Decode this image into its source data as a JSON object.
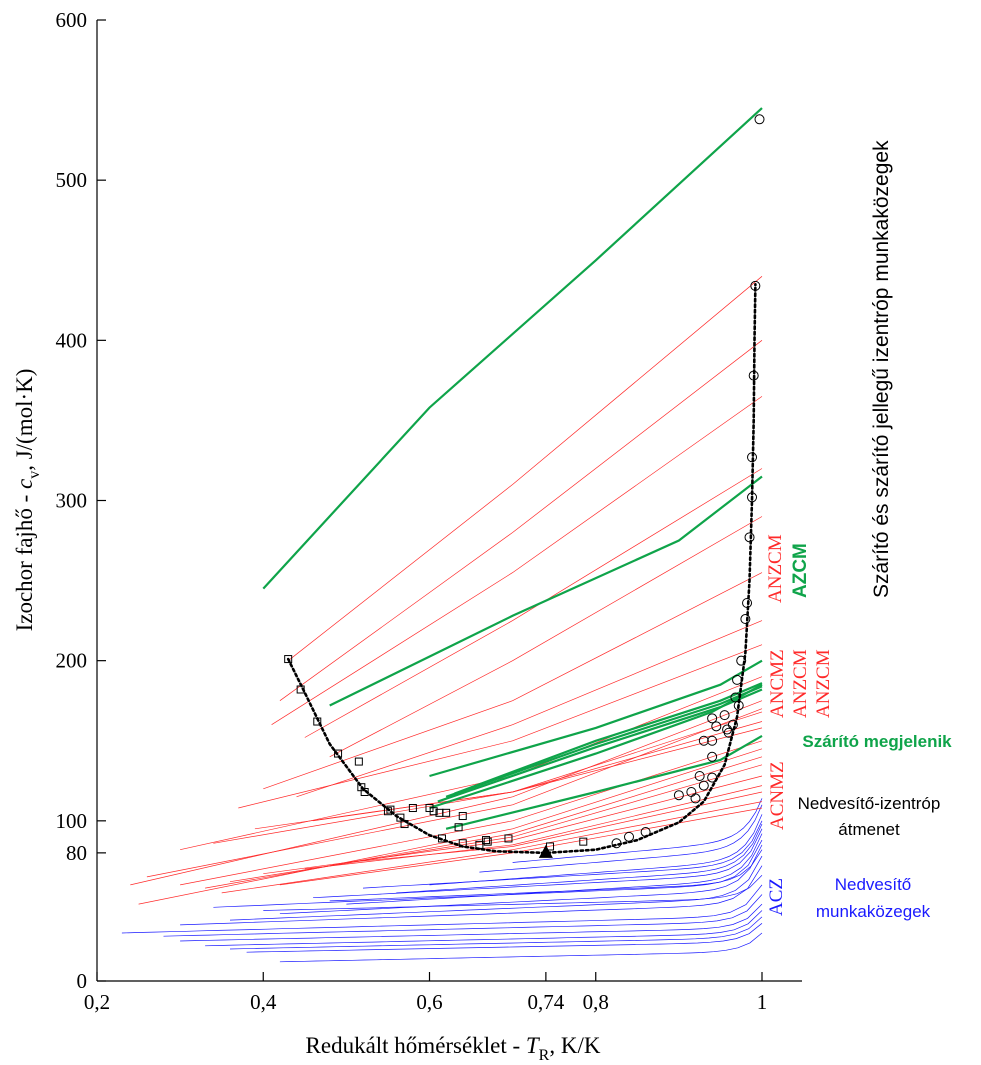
{
  "colors": {
    "red": "#ff2a2a",
    "green": "#0fa44a",
    "blue": "#1a1aff",
    "black": "#000000"
  },
  "chart_data": {
    "type": "line",
    "title": "",
    "xlabel": "Redukált hőmérséklet - T_R, K/K",
    "xlabel_parts": {
      "main": "Redukált hőmérséklet - ",
      "symbol": "T",
      "sub": "R",
      "unit": ", K/K"
    },
    "ylabel": "Izochor fajhő - c_v, J/(mol·K)",
    "ylabel_parts": {
      "main": "Izochor fajhő - ",
      "symbol": "c",
      "sub": "v",
      "unit": ", J/(mol·K)"
    },
    "xlim": [
      0.2,
      1.025
    ],
    "ylim": [
      0,
      600
    ],
    "xticks": [
      {
        "value": 0.2,
        "label": "0,2"
      },
      {
        "value": 0.4,
        "label": "0,4"
      },
      {
        "value": 0.6,
        "label": "0,6"
      },
      {
        "value": 0.74,
        "label": "0,74"
      },
      {
        "value": 0.8,
        "label": "0,8"
      },
      {
        "value": 1.0,
        "label": "1"
      }
    ],
    "yticks": [
      {
        "value": 0,
        "label": "0"
      },
      {
        "value": 80,
        "label": "80"
      },
      {
        "value": 100,
        "label": "100"
      },
      {
        "value": 200,
        "label": "200"
      },
      {
        "value": 300,
        "label": "300"
      },
      {
        "value": 400,
        "label": "400"
      },
      {
        "value": 500,
        "label": "500"
      },
      {
        "value": 600,
        "label": "600"
      }
    ],
    "grid": false,
    "series": [
      {
        "group": "green",
        "points": [
          [
            0.4,
            245
          ],
          [
            0.6,
            358
          ],
          [
            0.8,
            450
          ],
          [
            1.0,
            545
          ]
        ]
      },
      {
        "group": "green",
        "points": [
          [
            0.48,
            172
          ],
          [
            0.7,
            228
          ],
          [
            0.9,
            275
          ],
          [
            1.0,
            315
          ]
        ]
      },
      {
        "group": "green",
        "points": [
          [
            0.6,
            108
          ],
          [
            0.8,
            142
          ],
          [
            0.94,
            168
          ],
          [
            1.0,
            185
          ]
        ]
      },
      {
        "group": "green",
        "points": [
          [
            0.61,
            112
          ],
          [
            0.8,
            146
          ],
          [
            0.95,
            171
          ],
          [
            1.0,
            182
          ]
        ]
      },
      {
        "group": "green",
        "points": [
          [
            0.62,
            115
          ],
          [
            0.8,
            148
          ],
          [
            0.95,
            173
          ],
          [
            1.0,
            184
          ]
        ]
      },
      {
        "group": "green",
        "points": [
          [
            0.63,
            117
          ],
          [
            0.8,
            150
          ],
          [
            0.95,
            175
          ],
          [
            1.0,
            186
          ]
        ]
      },
      {
        "group": "green",
        "points": [
          [
            0.6,
            128
          ],
          [
            0.8,
            158
          ],
          [
            0.95,
            185
          ],
          [
            1.0,
            200
          ]
        ]
      },
      {
        "group": "green",
        "points": [
          [
            0.62,
            95
          ],
          [
            0.8,
            118
          ],
          [
            0.95,
            138
          ],
          [
            1.0,
            153
          ]
        ]
      },
      {
        "group": "red",
        "points": [
          [
            0.43,
            200
          ],
          [
            0.7,
            310
          ],
          [
            1.0,
            440
          ]
        ]
      },
      {
        "group": "red",
        "points": [
          [
            0.42,
            175
          ],
          [
            0.7,
            280
          ],
          [
            1.0,
            400
          ]
        ]
      },
      {
        "group": "red",
        "points": [
          [
            0.41,
            160
          ],
          [
            0.7,
            255
          ],
          [
            1.0,
            365
          ]
        ]
      },
      {
        "group": "red",
        "points": [
          [
            0.45,
            152
          ],
          [
            0.7,
            225
          ],
          [
            1.0,
            320
          ]
        ]
      },
      {
        "group": "red",
        "points": [
          [
            0.48,
            140
          ],
          [
            0.7,
            200
          ],
          [
            1.0,
            290
          ]
        ]
      },
      {
        "group": "red",
        "points": [
          [
            0.4,
            120
          ],
          [
            0.7,
            175
          ],
          [
            1.0,
            255
          ]
        ]
      },
      {
        "group": "red",
        "points": [
          [
            0.44,
            115
          ],
          [
            0.7,
            160
          ],
          [
            1.0,
            225
          ]
        ]
      },
      {
        "group": "red",
        "points": [
          [
            0.37,
            108
          ],
          [
            0.7,
            150
          ],
          [
            1.0,
            210
          ]
        ]
      },
      {
        "group": "red",
        "points": [
          [
            0.3,
            82
          ],
          [
            0.7,
            128
          ],
          [
            1.0,
            190
          ]
        ]
      },
      {
        "group": "red",
        "points": [
          [
            0.24,
            60
          ],
          [
            0.7,
            115
          ],
          [
            1.0,
            175
          ]
        ]
      },
      {
        "group": "red",
        "points": [
          [
            0.26,
            65
          ],
          [
            0.7,
            110
          ],
          [
            1.0,
            170
          ]
        ]
      },
      {
        "group": "red",
        "points": [
          [
            0.34,
            86
          ],
          [
            0.7,
            118
          ],
          [
            1.0,
            168
          ]
        ]
      },
      {
        "group": "red",
        "points": [
          [
            0.39,
            95
          ],
          [
            0.7,
            118
          ],
          [
            1.0,
            162
          ]
        ]
      },
      {
        "group": "red",
        "points": [
          [
            0.46,
            100
          ],
          [
            0.7,
            118
          ],
          [
            1.0,
            158
          ]
        ]
      },
      {
        "group": "red",
        "points": [
          [
            0.3,
            60
          ],
          [
            0.7,
            100
          ],
          [
            1.0,
            150
          ]
        ]
      },
      {
        "group": "red",
        "points": [
          [
            0.25,
            48
          ],
          [
            0.7,
            95
          ],
          [
            1.0,
            145
          ]
        ]
      },
      {
        "group": "red",
        "points": [
          [
            0.33,
            58
          ],
          [
            0.7,
            92
          ],
          [
            1.0,
            140
          ]
        ]
      },
      {
        "group": "red",
        "points": [
          [
            0.36,
            62
          ],
          [
            0.7,
            90
          ],
          [
            1.0,
            135
          ]
        ]
      },
      {
        "group": "red",
        "points": [
          [
            0.4,
            67
          ],
          [
            0.7,
            88
          ],
          [
            1.0,
            128
          ]
        ]
      },
      {
        "group": "red",
        "points": [
          [
            0.45,
            70
          ],
          [
            0.7,
            85
          ],
          [
            1.0,
            122
          ]
        ]
      },
      {
        "group": "red",
        "points": [
          [
            0.5,
            74
          ],
          [
            0.7,
            84
          ],
          [
            1.0,
            118
          ]
        ]
      },
      {
        "group": "red",
        "points": [
          [
            0.35,
            55
          ],
          [
            0.7,
            82
          ],
          [
            1.0,
            112
          ]
        ]
      },
      {
        "group": "red",
        "points": [
          [
            0.42,
            60
          ],
          [
            0.7,
            80
          ],
          [
            1.0,
            108
          ]
        ]
      },
      {
        "group": "blue",
        "start": [
          0.23,
          30
        ],
        "end": 60
      },
      {
        "group": "blue",
        "start": [
          0.28,
          28
        ],
        "end": 54
      },
      {
        "group": "blue",
        "start": [
          0.3,
          25
        ],
        "end": 48
      },
      {
        "group": "blue",
        "start": [
          0.33,
          22
        ],
        "end": 44
      },
      {
        "group": "blue",
        "start": [
          0.36,
          20
        ],
        "end": 40
      },
      {
        "group": "blue",
        "start": [
          0.38,
          18
        ],
        "end": 36
      },
      {
        "group": "blue",
        "start": [
          0.42,
          12
        ],
        "end": 30
      },
      {
        "group": "blue",
        "start": [
          0.3,
          35
        ],
        "end": 72
      },
      {
        "group": "blue",
        "start": [
          0.36,
          38
        ],
        "end": 78
      },
      {
        "group": "blue",
        "start": [
          0.42,
          42
        ],
        "end": 85
      },
      {
        "group": "blue",
        "start": [
          0.5,
          48
        ],
        "end": 92
      },
      {
        "group": "blue",
        "start": [
          0.56,
          55
        ],
        "end": 98
      },
      {
        "group": "blue",
        "start": [
          0.6,
          60
        ],
        "end": 104
      },
      {
        "group": "blue",
        "start": [
          0.66,
          68
        ],
        "end": 110
      },
      {
        "group": "blue",
        "start": [
          0.7,
          74
        ],
        "end": 114
      },
      {
        "group": "blue",
        "start": [
          0.34,
          46
        ],
        "end": 88
      },
      {
        "group": "blue",
        "start": [
          0.46,
          52
        ],
        "end": 95
      },
      {
        "group": "blue",
        "start": [
          0.52,
          58
        ],
        "end": 100
      },
      {
        "group": "blue",
        "start": [
          0.4,
          44
        ],
        "end": 66
      },
      {
        "group": "blue",
        "start": [
          0.48,
          50
        ],
        "end": 82
      }
    ],
    "square_markers": [
      [
        0.43,
        201
      ],
      [
        0.445,
        182
      ],
      [
        0.465,
        162
      ],
      [
        0.49,
        142
      ],
      [
        0.515,
        137
      ],
      [
        0.518,
        121
      ],
      [
        0.522,
        118
      ],
      [
        0.55,
        106
      ],
      [
        0.553,
        107
      ],
      [
        0.565,
        102
      ],
      [
        0.57,
        98
      ],
      [
        0.58,
        108
      ],
      [
        0.6,
        108
      ],
      [
        0.605,
        106
      ],
      [
        0.612,
        105
      ],
      [
        0.62,
        105
      ],
      [
        0.615,
        89
      ],
      [
        0.635,
        96
      ],
      [
        0.64,
        103
      ],
      [
        0.64,
        86
      ],
      [
        0.66,
        85
      ],
      [
        0.668,
        88
      ],
      [
        0.67,
        87
      ],
      [
        0.695,
        89
      ],
      [
        0.745,
        84
      ],
      [
        0.785,
        87
      ]
    ],
    "circle_markers": [
      [
        0.825,
        86
      ],
      [
        0.84,
        90
      ],
      [
        0.86,
        93
      ],
      [
        0.9,
        116
      ],
      [
        0.915,
        118
      ],
      [
        0.92,
        114
      ],
      [
        0.93,
        122
      ],
      [
        0.925,
        128
      ],
      [
        0.94,
        127
      ],
      [
        0.93,
        150
      ],
      [
        0.94,
        140
      ],
      [
        0.94,
        150
      ],
      [
        0.94,
        164
      ],
      [
        0.945,
        159
      ],
      [
        0.955,
        166
      ],
      [
        0.958,
        157
      ],
      [
        0.96,
        155
      ],
      [
        0.965,
        160
      ],
      [
        0.968,
        177
      ],
      [
        0.972,
        172
      ],
      [
        0.97,
        188
      ],
      [
        0.975,
        200
      ],
      [
        0.98,
        226
      ],
      [
        0.982,
        236
      ],
      [
        0.985,
        277
      ],
      [
        0.988,
        302
      ],
      [
        0.988,
        327
      ],
      [
        0.99,
        378
      ],
      [
        0.992,
        434
      ],
      [
        0.997,
        538
      ]
    ],
    "dotted_curve": [
      [
        0.43,
        201
      ],
      [
        0.45,
        180
      ],
      [
        0.48,
        148
      ],
      [
        0.52,
        120
      ],
      [
        0.56,
        103
      ],
      [
        0.6,
        91
      ],
      [
        0.64,
        84
      ],
      [
        0.68,
        81
      ],
      [
        0.74,
        80
      ],
      [
        0.8,
        82
      ],
      [
        0.85,
        88
      ],
      [
        0.9,
        99
      ],
      [
        0.93,
        112
      ],
      [
        0.955,
        135
      ],
      [
        0.97,
        165
      ],
      [
        0.98,
        205
      ],
      [
        0.985,
        250
      ],
      [
        0.988,
        300
      ],
      [
        0.99,
        350
      ],
      [
        0.991,
        400
      ],
      [
        0.992,
        435
      ]
    ],
    "triangle_marker": [
      0.74,
      80
    ],
    "annotations": {
      "anzcm_1": "ANZCM",
      "azcm": "AZCM",
      "ancmz_1": "ANCMZ",
      "anzcm_2": "ANZCM",
      "anzcm_3": "ANZCM",
      "acnmz": "ACNMZ",
      "acz": "ACZ",
      "dryer_isentropic": "Szárító és szárító jellegű izentróp munkaközegek",
      "dryer_appears": "Szárító megjelenik",
      "wet_transition_1": "Nedvesítő-izentróp",
      "wet_transition_2": "átmenet",
      "wet_fluids_1": "Nedvesítő",
      "wet_fluids_2": "munkaközegek"
    }
  }
}
